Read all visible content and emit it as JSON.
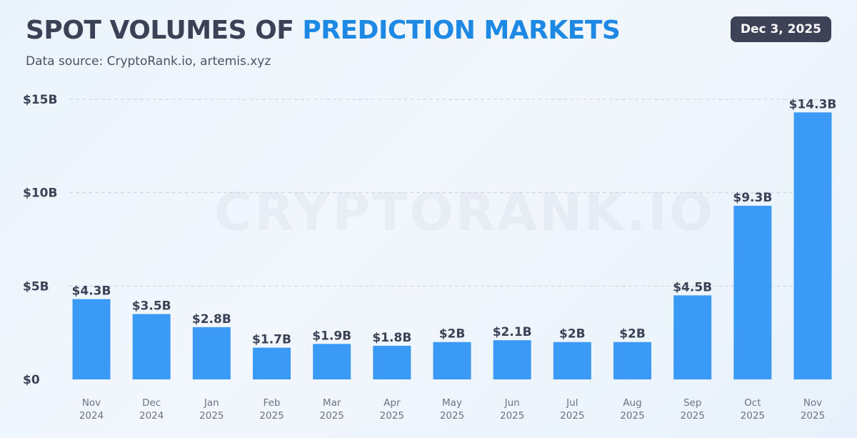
{
  "header": {
    "title_main": "SPOT VOLUMES OF",
    "title_accent": "PREDICTION MARKETS",
    "subtitle": "Data source: CryptoRank.io, artemis.xyz",
    "date": "Dec 3, 2025",
    "watermark": "CRYPTORANK.IO"
  },
  "colors": {
    "bar": "#3a9af5",
    "accent": "#1e88e5",
    "text": "#3b4256",
    "badge": "#3d4256"
  },
  "chart_data": {
    "type": "bar",
    "title": "SPOT VOLUMES OF PREDICTION MARKETS",
    "xlabel": "",
    "ylabel": "",
    "ylim": [
      0,
      15
    ],
    "yticks": [
      0,
      5,
      10,
      15
    ],
    "ytick_labels": [
      "$0",
      "$5B",
      "$10B",
      "$15B"
    ],
    "grid": true,
    "unit": "billions USD",
    "categories": [
      [
        "Nov",
        "2024"
      ],
      [
        "Dec",
        "2024"
      ],
      [
        "Jan",
        "2025"
      ],
      [
        "Feb",
        "2025"
      ],
      [
        "Mar",
        "2025"
      ],
      [
        "Apr",
        "2025"
      ],
      [
        "May",
        "2025"
      ],
      [
        "Jun",
        "2025"
      ],
      [
        "Jul",
        "2025"
      ],
      [
        "Aug",
        "2025"
      ],
      [
        "Sep",
        "2025"
      ],
      [
        "Oct",
        "2025"
      ],
      [
        "Nov",
        "2025"
      ]
    ],
    "values": [
      4.3,
      3.5,
      2.8,
      1.7,
      1.9,
      1.8,
      2,
      2.1,
      2,
      2,
      4.5,
      9.3,
      14.3
    ],
    "value_labels": [
      "$4.3B",
      "$3.5B",
      "$2.8B",
      "$1.7B",
      "$1.9B",
      "$1.8B",
      "$2B",
      "$2.1B",
      "$2B",
      "$2B",
      "$4.5B",
      "$9.3B",
      "$14.3B"
    ]
  }
}
